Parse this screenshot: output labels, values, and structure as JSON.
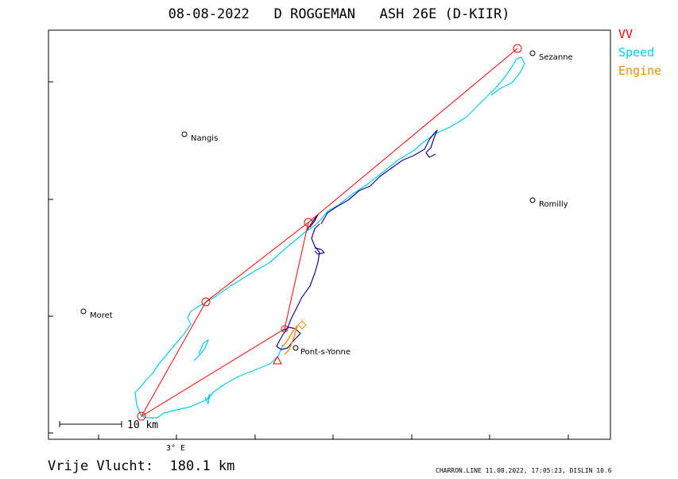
{
  "header": {
    "title": "08-08-2022   D ROGGEMAN   ASH 26E (D-KIIR)"
  },
  "legend": {
    "items": [
      {
        "label": "VV",
        "color": "#ff0000"
      },
      {
        "label": "Speed",
        "color": "#00ccee"
      },
      {
        "label": "Engine",
        "color": "#ff8800"
      }
    ]
  },
  "map": {
    "towns": [
      {
        "name": "Sezanne"
      },
      {
        "name": "Nangis"
      },
      {
        "name": "Romilly"
      },
      {
        "name": "Moret"
      },
      {
        "name": "Pont-s-Yonne"
      }
    ],
    "scale_label": "10  km",
    "meridian_label": "3° E",
    "colors": {
      "task": "#ff0000",
      "track_fast": "#00ccee",
      "track_slow": "#1a0a8a",
      "engine": "#ff8800"
    }
  },
  "footer": {
    "distance": "Vrije Vlucht:  180.1 km",
    "credit": "CHARRON.LINE 11.08.2022, 17:05:23, DISLIN 10.6"
  }
}
